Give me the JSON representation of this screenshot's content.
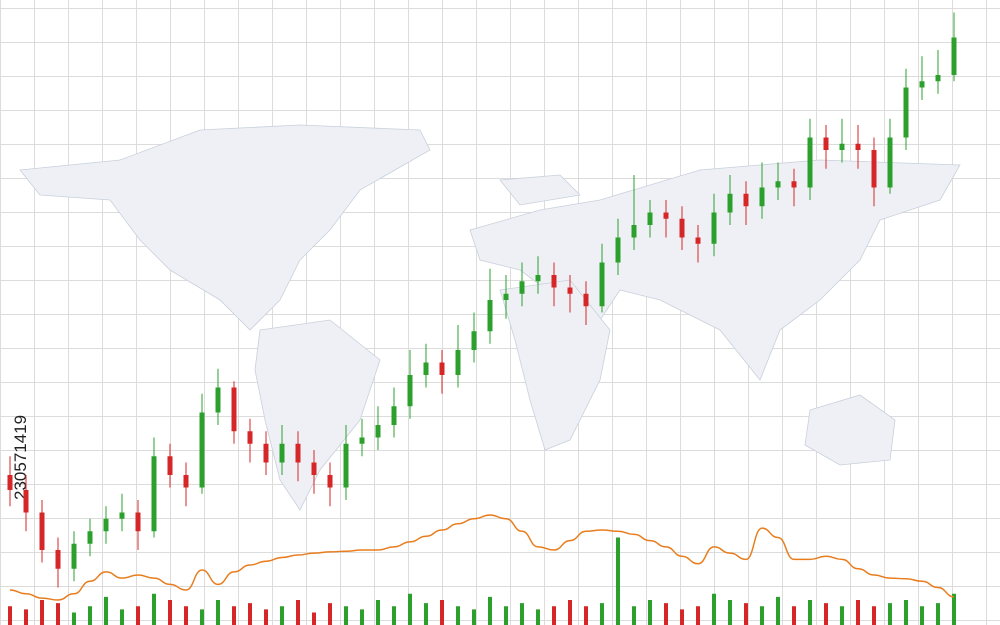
{
  "watermark": "230571419",
  "chart_data": {
    "type": "candlestick",
    "ylim": [
      0,
      100
    ],
    "grid": true,
    "up_color": "#2ca02c",
    "down_color": "#d62728",
    "open": [
      24,
      21.6,
      18,
      12,
      9,
      13,
      15,
      17,
      18,
      15,
      27,
      24,
      22,
      34,
      38,
      31,
      29,
      26,
      29,
      26,
      24,
      22,
      29,
      30,
      32,
      35,
      40,
      42,
      40,
      44,
      47,
      52,
      53,
      55,
      56,
      54,
      53,
      51,
      58,
      62,
      64,
      66,
      65,
      62,
      61,
      66,
      69,
      67,
      70,
      71,
      70,
      78,
      76,
      77,
      76,
      70,
      78,
      86,
      87,
      88
    ],
    "high": [
      27,
      24,
      20,
      14,
      15,
      17,
      19,
      21,
      20,
      30,
      29,
      26,
      37,
      41,
      39,
      33,
      31,
      32,
      31,
      28,
      26,
      32,
      33,
      35,
      38,
      44,
      45,
      44,
      48,
      50,
      57,
      56,
      58,
      59,
      58,
      56,
      55,
      61,
      65,
      72,
      68,
      68,
      67,
      64,
      69,
      72,
      71,
      74,
      74,
      73,
      81,
      80,
      81,
      80,
      78,
      81,
      89,
      91,
      92,
      98
    ],
    "low": [
      19,
      15,
      10,
      6,
      7,
      11,
      13,
      15,
      12,
      14,
      22,
      19,
      21,
      32,
      29,
      26,
      24,
      24,
      23,
      21,
      19,
      20,
      27,
      28,
      30,
      33,
      38,
      37,
      38,
      42,
      45,
      49,
      51,
      53,
      51,
      50,
      48,
      50,
      56,
      60,
      62,
      62,
      60,
      58,
      59,
      64,
      64,
      65,
      68,
      67,
      68,
      73,
      74,
      73,
      67,
      69,
      76,
      84,
      85,
      87
    ],
    "close": [
      21.6,
      18,
      12,
      9,
      13,
      15,
      17,
      18,
      15,
      27,
      24,
      22,
      34,
      38,
      31,
      29,
      26,
      29,
      26,
      24,
      22,
      29,
      30,
      32,
      35,
      40,
      42,
      40,
      44,
      47,
      52,
      53,
      55,
      56,
      54,
      53,
      51,
      58,
      62,
      64,
      66,
      65,
      62,
      61,
      66,
      69,
      67,
      70,
      71,
      70,
      78,
      76,
      77,
      76,
      70,
      78,
      86,
      87,
      88,
      94
    ],
    "volume": [
      3,
      2.5,
      4,
      3.5,
      2,
      3,
      4.5,
      2.5,
      3,
      5,
      4,
      3,
      2.5,
      4,
      3,
      3.5,
      2.5,
      3,
      4,
      2,
      3.5,
      3,
      2.5,
      4,
      3,
      5,
      3.5,
      4,
      3,
      2.5,
      4.5,
      3,
      3.5,
      2.5,
      3,
      4,
      3,
      3.5,
      14,
      3,
      4,
      3.5,
      2.5,
      3,
      5,
      4,
      3.5,
      3,
      4.5,
      3,
      4,
      3.5,
      3,
      4,
      3,
      3.5,
      4,
      3,
      3.5,
      5
    ],
    "line": {
      "color": "#e87d1e",
      "values": [
        5.6,
        5,
        4.3,
        4,
        5,
        7,
        8.5,
        7.5,
        8,
        7.5,
        6.5,
        5.6,
        8.8,
        6.5,
        8.5,
        9.6,
        10.2,
        10.8,
        11.2,
        11.5,
        11.7,
        11.8,
        12,
        12,
        12.5,
        13.3,
        14.2,
        15.2,
        16.2,
        17,
        17.6,
        17,
        15,
        12.5,
        12,
        13.5,
        15,
        15.2,
        15,
        14.5,
        13.5,
        12.5,
        11,
        9.8,
        12.5,
        11.5,
        10.5,
        15.5,
        14,
        10.5,
        10.5,
        11,
        10.5,
        9,
        8,
        7.5,
        7.4,
        7,
        6,
        4.5
      ]
    }
  }
}
